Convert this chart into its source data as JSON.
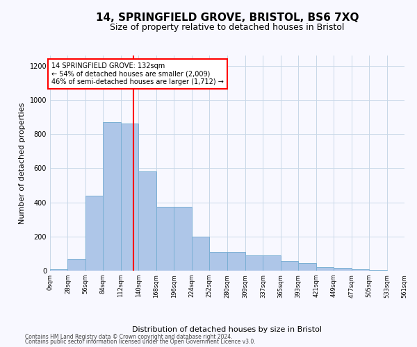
{
  "title": "14, SPRINGFIELD GROVE, BRISTOL, BS6 7XQ",
  "subtitle": "Size of property relative to detached houses in Bristol",
  "xlabel": "Distribution of detached houses by size in Bristol",
  "ylabel": "Number of detached properties",
  "bar_color": "#aec6e8",
  "bar_edge_color": "#7aafd4",
  "vline_x": 132,
  "vline_color": "red",
  "annotation_title": "14 SPRINGFIELD GROVE: 132sqm",
  "annotation_line2": "← 54% of detached houses are smaller (2,009)",
  "annotation_line3": "46% of semi-detached houses are larger (1,712) →",
  "bin_edges": [
    0,
    28,
    56,
    84,
    112,
    140,
    168,
    196,
    224,
    252,
    280,
    309,
    337,
    365,
    393,
    421,
    449,
    477,
    505,
    533,
    561
  ],
  "bar_heights": [
    10,
    70,
    440,
    870,
    860,
    580,
    375,
    375,
    200,
    110,
    110,
    90,
    90,
    55,
    45,
    20,
    15,
    10,
    5,
    2
  ],
  "ylim": [
    0,
    1260
  ],
  "yticks": [
    0,
    200,
    400,
    600,
    800,
    1000,
    1200
  ],
  "footnote1": "Contains HM Land Registry data © Crown copyright and database right 2024.",
  "footnote2": "Contains public sector information licensed under the Open Government Licence v3.0.",
  "bg_color": "#f8f8ff",
  "grid_color": "#c8d8e8",
  "title_fontsize": 11,
  "subtitle_fontsize": 9,
  "axis_label_fontsize": 8,
  "tick_fontsize": 6,
  "footnote_fontsize": 5.5,
  "tick_labels": [
    "0sqm",
    "28sqm",
    "56sqm",
    "84sqm",
    "112sqm",
    "140sqm",
    "168sqm",
    "196sqm",
    "224sqm",
    "252sqm",
    "280sqm",
    "309sqm",
    "337sqm",
    "365sqm",
    "393sqm",
    "421sqm",
    "449sqm",
    "477sqm",
    "505sqm",
    "533sqm",
    "561sqm"
  ]
}
